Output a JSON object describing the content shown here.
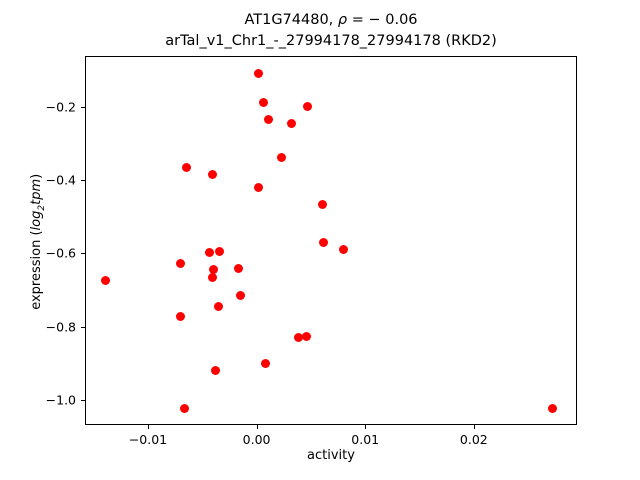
{
  "chart_data": {
    "type": "scatter",
    "title": {
      "line1_pre": "AT1G74480, ",
      "line1_rho": "ρ",
      "line1_post": " = − 0.06",
      "line2": "arTal_v1_Chr1_-_27994178_27994178 (RKD2)"
    },
    "xlabel": "activity",
    "ylabel": {
      "pre": "expression (",
      "math1": "log",
      "sub": "2",
      "math2": "tpm",
      "post": ")"
    },
    "marker_color": "#ff0000",
    "axis_color": "#000000",
    "xlim": [
      -0.0158,
      0.0295
    ],
    "ylim": [
      -1.068,
      -0.062
    ],
    "x_ticks": [
      {
        "value": -0.01,
        "label": "−0.01"
      },
      {
        "value": 0.0,
        "label": "0.00"
      },
      {
        "value": 0.01,
        "label": "0.01"
      },
      {
        "value": 0.02,
        "label": "0.02"
      }
    ],
    "y_ticks": [
      {
        "value": -0.2,
        "label": "−0.2"
      },
      {
        "value": -0.4,
        "label": "−0.4"
      },
      {
        "value": -0.6,
        "label": "−0.6"
      },
      {
        "value": -0.8,
        "label": "−0.8"
      },
      {
        "value": -1.0,
        "label": "−1.0"
      }
    ],
    "points": [
      [
        0.0002,
        -0.11
      ],
      [
        0.0006,
        -0.19
      ],
      [
        0.0011,
        -0.234
      ],
      [
        0.0047,
        -0.201
      ],
      [
        0.0032,
        -0.246
      ],
      [
        0.0023,
        -0.339
      ],
      [
        -0.0065,
        -0.366
      ],
      [
        -0.0041,
        -0.384
      ],
      [
        0.0002,
        -0.42
      ],
      [
        0.0061,
        -0.468
      ],
      [
        0.0062,
        -0.57
      ],
      [
        0.008,
        -0.59
      ],
      [
        -0.0043,
        -0.599
      ],
      [
        -0.0034,
        -0.594
      ],
      [
        -0.007,
        -0.628
      ],
      [
        -0.004,
        -0.644
      ],
      [
        -0.0041,
        -0.666
      ],
      [
        -0.0017,
        -0.641
      ],
      [
        -0.0015,
        -0.715
      ],
      [
        -0.0035,
        -0.744
      ],
      [
        -0.007,
        -0.771
      ],
      [
        -0.0139,
        -0.673
      ],
      [
        -0.0038,
        -0.92
      ],
      [
        0.0008,
        -0.9
      ],
      [
        0.0039,
        -0.83
      ],
      [
        0.0046,
        -0.826
      ],
      [
        -0.0066,
        -1.022
      ],
      [
        0.0272,
        -1.022
      ]
    ]
  }
}
